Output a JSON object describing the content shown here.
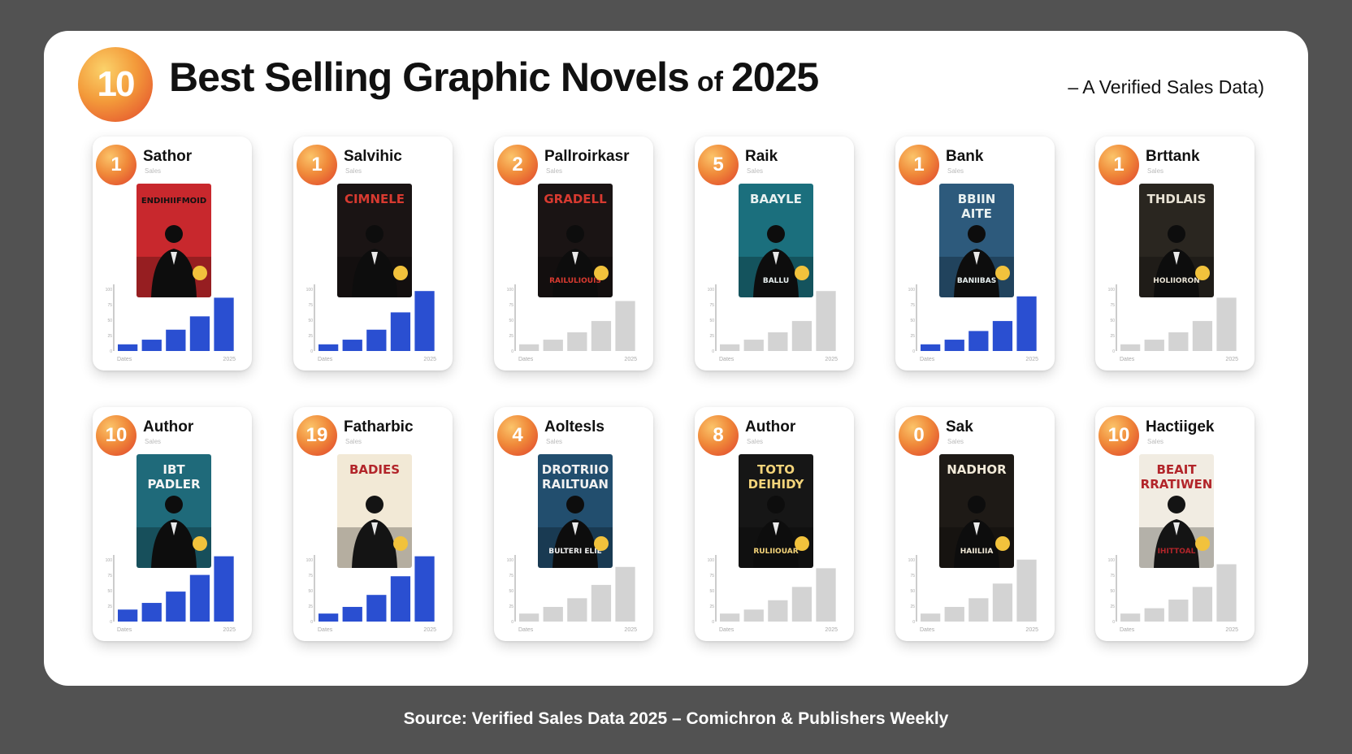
{
  "header": {
    "badge": "10",
    "title_main": "Best Selling Graphic Novels",
    "title_of": "of",
    "title_year": "2025",
    "subtitle": "– A Verified Sales Data)"
  },
  "footer": {
    "source": "Source: Verified Sales Data 2025 – Comichron & Publishers Weekly"
  },
  "colors": {
    "blue_bar": "#2a4fd1",
    "gray_bar": "#d3d3d3",
    "badge_red": "#e2452c",
    "badge_yellow": "#fbd26a"
  },
  "cards": [
    {
      "rank": "1",
      "title": "Sathor",
      "sub": "Sales",
      "cover_text": "ENDIHIIFMOID",
      "cover_bottom": "",
      "cover_bg": "#c8282d",
      "cover_text_color": "#111111",
      "bar_color": "blue",
      "y_ticks": [
        "100",
        "75",
        "50",
        "25",
        "0"
      ],
      "x_start": "Dates",
      "x_end": "2025",
      "values": [
        10,
        17,
        32,
        52,
        80
      ],
      "ymax": 100
    },
    {
      "rank": "1",
      "title": "Salvihic",
      "sub": "Sales",
      "cover_text": "CIMNELE",
      "cover_bottom": "",
      "cover_bg": "#1a1414",
      "cover_text_color": "#d83a30",
      "bar_color": "blue",
      "y_ticks": [
        "100",
        "75",
        "50",
        "25",
        "0"
      ],
      "x_start": "Dates",
      "x_end": "2025",
      "values": [
        10,
        17,
        32,
        58,
        90
      ],
      "ymax": 100
    },
    {
      "rank": "2",
      "title": "Pallroirkasr",
      "sub": "Sales",
      "cover_text": "GRADELL",
      "cover_bottom": "RAILULIOUIS",
      "cover_bg": "#1a1414",
      "cover_text_color": "#d83a30",
      "bar_color": "gray",
      "y_ticks": [
        "100",
        "75",
        "50",
        "25",
        "0"
      ],
      "x_start": "Dates",
      "x_end": "2025",
      "values": [
        10,
        17,
        28,
        45,
        75
      ],
      "ymax": 100
    },
    {
      "rank": "5",
      "title": "Raik",
      "sub": "Sales",
      "cover_text": "BAAYLE",
      "cover_bottom": "BALLU",
      "cover_bg": "#1b6f7d",
      "cover_text_color": "#e8f0f0",
      "bar_color": "gray",
      "y_ticks": [
        "100",
        "75",
        "50",
        "25",
        "0"
      ],
      "x_start": "Dates",
      "x_end": "2025",
      "values": [
        10,
        17,
        28,
        45,
        90
      ],
      "ymax": 100
    },
    {
      "rank": "1",
      "title": "Bank",
      "sub": "Sales",
      "cover_text": "BBIIN AITE",
      "cover_bottom": "BANIIBAS",
      "cover_bg": "#2d5a7c",
      "cover_text_color": "#e8f0f0",
      "bar_color": "blue",
      "y_ticks": [
        "100",
        "75",
        "50",
        "25",
        "0"
      ],
      "x_start": "Dates",
      "x_end": "2025",
      "values": [
        10,
        17,
        30,
        45,
        82
      ],
      "ymax": 100
    },
    {
      "rank": "1",
      "title": "Brttank",
      "sub": "Sales",
      "cover_text": "THDLAIS",
      "cover_bottom": "HOLIIORON",
      "cover_bg": "#2a2620",
      "cover_text_color": "#e8e2d4",
      "bar_color": "gray",
      "y_ticks": [
        "100",
        "75",
        "50",
        "25",
        "0"
      ],
      "x_start": "Dates",
      "x_end": "2025",
      "values": [
        10,
        17,
        28,
        45,
        80
      ],
      "ymax": 100
    },
    {
      "rank": "10",
      "title": "Author",
      "sub": "Sales",
      "cover_text": "IBT PADLER",
      "cover_bottom": "",
      "cover_bg": "#1f6a7a",
      "cover_text_color": "#f4f4f4",
      "bar_color": "blue",
      "y_ticks": [
        "100",
        "75",
        "50",
        "25",
        "0"
      ],
      "x_start": "Dates",
      "x_end": "2025",
      "values": [
        18,
        28,
        45,
        70,
        98
      ],
      "ymax": 100
    },
    {
      "rank": "19",
      "title": "Fatharbic",
      "sub": "Sales",
      "cover_text": "BADIES",
      "cover_bottom": "",
      "cover_bg": "#f2e9d6",
      "cover_text_color": "#b2252a",
      "bar_color": "blue",
      "y_ticks": [
        "100",
        "75",
        "50",
        "25",
        "0"
      ],
      "x_start": "Dates",
      "x_end": "2025",
      "values": [
        12,
        22,
        40,
        68,
        98
      ],
      "ymax": 100
    },
    {
      "rank": "4",
      "title": "Aoltesls",
      "sub": "Sales",
      "cover_text": "DROTRIIO RAILTUAN",
      "cover_bottom": "BULTERI ELIE",
      "cover_bg": "#224e6e",
      "cover_text_color": "#f0f0f0",
      "bar_color": "gray",
      "y_ticks": [
        "100",
        "75",
        "50",
        "25",
        "0"
      ],
      "x_start": "Dates",
      "x_end": "2025",
      "values": [
        12,
        22,
        35,
        55,
        82
      ],
      "ymax": 100
    },
    {
      "rank": "8",
      "title": "Author",
      "sub": "Sales",
      "cover_text": "TOTO DEIHIDY",
      "cover_bottom": "RULIIOUAR",
      "cover_bg": "#161616",
      "cover_text_color": "#f4d47a",
      "bar_color": "gray",
      "y_ticks": [
        "100",
        "75",
        "50",
        "25",
        "0"
      ],
      "x_start": "Dates",
      "x_end": "2025",
      "values": [
        12,
        18,
        32,
        52,
        80
      ],
      "ymax": 100
    },
    {
      "rank": "0",
      "title": "Sak",
      "sub": "Sales",
      "cover_text": "NADHOR",
      "cover_bottom": "HAIILIIA",
      "cover_bg": "#1e1a16",
      "cover_text_color": "#f2ead8",
      "bar_color": "gray",
      "y_ticks": [
        "100",
        "75",
        "50",
        "25",
        "0"
      ],
      "x_start": "Dates",
      "x_end": "2025",
      "values": [
        12,
        22,
        35,
        57,
        93
      ],
      "ymax": 100
    },
    {
      "rank": "10",
      "title": "Hactiigek",
      "sub": "Sales",
      "cover_text": "BEAIT RRATIWEN",
      "cover_bottom": "IHITTOAL",
      "cover_bg": "#f1ece2",
      "cover_text_color": "#b2252a",
      "bar_color": "gray",
      "y_ticks": [
        "100",
        "75",
        "50",
        "25",
        "0"
      ],
      "x_start": "Dates",
      "x_end": "2025",
      "values": [
        12,
        20,
        33,
        52,
        86
      ],
      "ymax": 100
    }
  ],
  "chart_data": {
    "type": "bar",
    "title": "Best Selling Graphic Novels of 2025",
    "series": [
      {
        "name": "Sathor",
        "values": [
          10,
          17,
          32,
          52,
          80
        ]
      },
      {
        "name": "Salvihic",
        "values": [
          10,
          17,
          32,
          58,
          90
        ]
      },
      {
        "name": "Pallroirkasr",
        "values": [
          10,
          17,
          28,
          45,
          75
        ]
      },
      {
        "name": "Raik",
        "values": [
          10,
          17,
          28,
          45,
          90
        ]
      },
      {
        "name": "Bank",
        "values": [
          10,
          17,
          30,
          45,
          82
        ]
      },
      {
        "name": "Brttank",
        "values": [
          10,
          17,
          28,
          45,
          80
        ]
      },
      {
        "name": "Author",
        "values": [
          18,
          28,
          45,
          70,
          98
        ]
      },
      {
        "name": "Fatharbic",
        "values": [
          12,
          22,
          40,
          68,
          98
        ]
      },
      {
        "name": "Aoltesls",
        "values": [
          12,
          22,
          35,
          55,
          82
        ]
      },
      {
        "name": "Author",
        "values": [
          12,
          18,
          32,
          52,
          80
        ]
      },
      {
        "name": "Sak",
        "values": [
          12,
          22,
          35,
          57,
          93
        ]
      },
      {
        "name": "Hactiigek",
        "values": [
          12,
          20,
          33,
          52,
          86
        ]
      }
    ],
    "ylim": [
      0,
      100
    ],
    "grid": false,
    "legend": "none"
  }
}
